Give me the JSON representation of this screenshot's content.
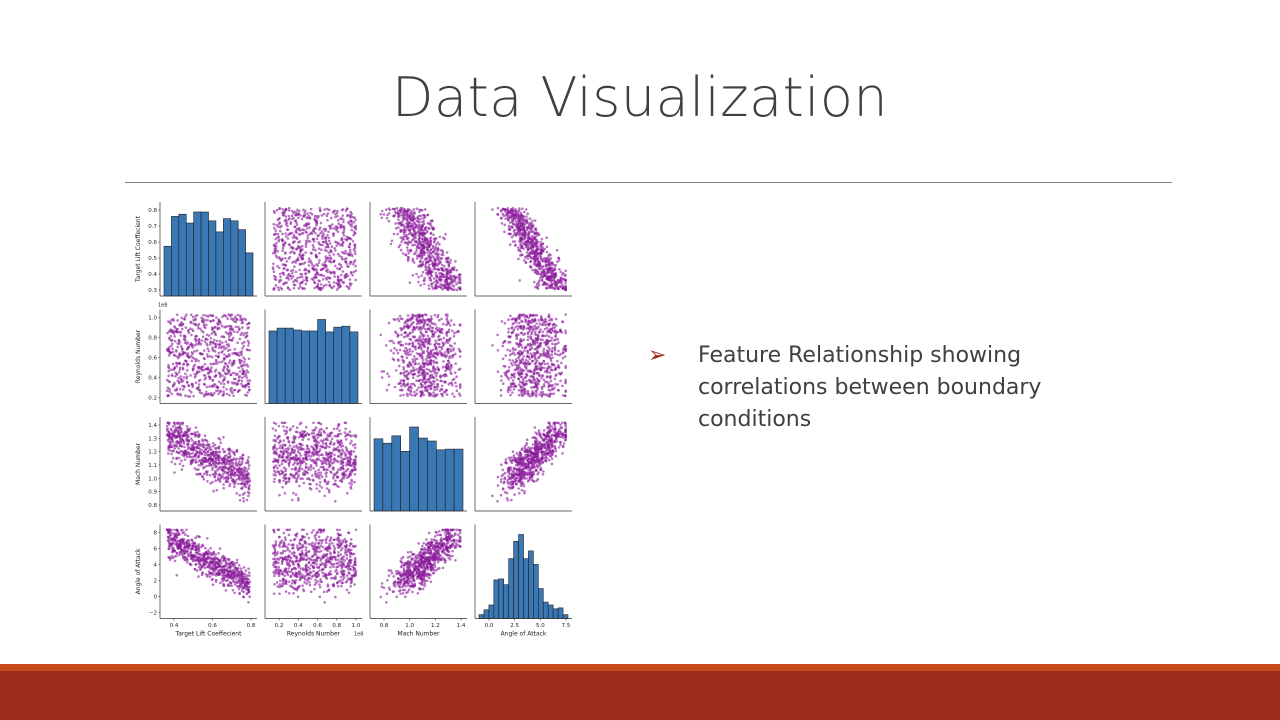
{
  "slide": {
    "title": "Data Visualization"
  },
  "bullet": {
    "text": "Feature Relationship showing correlations between boundary conditions"
  },
  "colors": {
    "scatter": "#8b1a9b",
    "hist": "#3a78b5",
    "hist_edge": "#1f1f1f",
    "accent": "#9b2c1c",
    "stripe": "#c94a1c"
  },
  "chart_data": {
    "type": "scatter",
    "subtype": "pairplot",
    "variables": [
      {
        "name": "Target Lift Coeffecient",
        "ticks": [
          "0.4",
          "0.6",
          "0.8"
        ],
        "ytick_labels": [
          "0.3",
          "0.4",
          "0.5",
          "0.6",
          "0.7",
          "0.8"
        ],
        "range": [
          0.25,
          0.82
        ]
      },
      {
        "name": "Reynolds Number",
        "ticks": [
          "0.2",
          "0.4",
          "0.6",
          "0.8",
          "1.0"
        ],
        "ytick_labels": [
          "0.2",
          "0.4",
          "0.6",
          "0.8",
          "1.0"
        ],
        "range": [
          0.08,
          1.02
        ],
        "offset_label": "1e8"
      },
      {
        "name": "Mach Number",
        "ticks": [
          "0.8",
          "1.0",
          "1.2",
          "1.4"
        ],
        "ytick_labels": [
          "0.8",
          "0.9",
          "1.0",
          "1.1",
          "1.2",
          "1.3",
          "1.4"
        ],
        "range": [
          0.78,
          1.42
        ]
      },
      {
        "name": "Angle of Attack",
        "ticks": [
          "0.0",
          "2.5",
          "5.0",
          "7.5"
        ],
        "ytick_labels": [
          "−2",
          "0",
          "2",
          "4",
          "6",
          "8"
        ],
        "range": [
          -2.3,
          9.3
        ]
      }
    ],
    "histograms": [
      [
        0.45,
        0.72,
        0.74,
        0.66,
        0.76,
        0.76,
        0.68,
        0.58,
        0.7,
        0.68,
        0.6,
        0.39
      ],
      [
        0.76,
        0.79,
        0.79,
        0.77,
        0.76,
        0.76,
        0.88,
        0.75,
        0.8,
        0.81,
        0.75
      ],
      [
        0.98,
        0.92,
        1.02,
        0.81,
        1.14,
        0.99,
        0.95,
        0.83,
        0.84,
        0.84
      ],
      [
        0.04,
        0.09,
        0.14,
        0.4,
        0.41,
        0.35,
        0.62,
        0.8,
        0.87,
        0.62,
        0.7,
        0.56,
        0.31,
        0.17,
        0.14,
        0.1,
        0.11,
        0.04
      ]
    ],
    "xlabels": [
      "Target Lift Coeffecient",
      "Reynolds Number",
      "Mach Number",
      "Angle of Attack"
    ],
    "ylabels": [
      "Target Lift Coeffecient",
      "Reynolds Number",
      "Mach Number",
      "Angle of Attack"
    ]
  }
}
